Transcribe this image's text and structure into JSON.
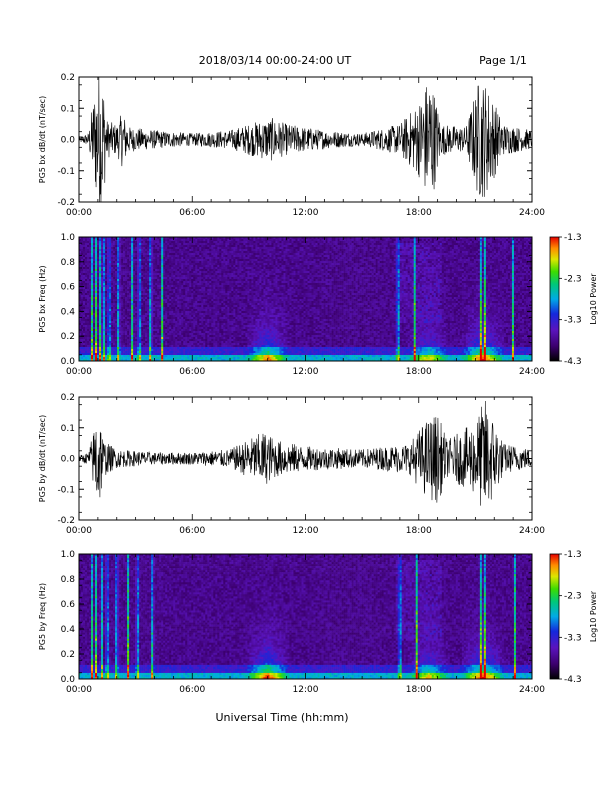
{
  "header": {
    "date_title": "2018/03/14  00:00-24:00 UT",
    "page": "Page 1/1"
  },
  "xlabel": "Universal Time (hh:mm)",
  "chart_data": [
    {
      "type": "line",
      "ylabel": "PG5 bx dB/dt (nT/sec)",
      "xlim_hours": [
        0,
        24
      ],
      "x_ticks": [
        "00:00",
        "06:00",
        "12:00",
        "18:00",
        "24:00"
      ],
      "ylim": [
        -0.2,
        0.2
      ],
      "y_ticks": [
        "0.2",
        "0.1",
        "0.0",
        "-0.1",
        "-0.2"
      ],
      "activity_envelope": [
        {
          "t": 0.0,
          "amp": 0.01
        },
        {
          "t": 0.5,
          "amp": 0.02
        },
        {
          "t": 0.8,
          "amp": 0.15
        },
        {
          "t": 1.0,
          "amp": 0.22
        },
        {
          "t": 1.2,
          "amp": 0.25
        },
        {
          "t": 1.5,
          "amp": 0.06
        },
        {
          "t": 2.0,
          "amp": 0.05
        },
        {
          "t": 2.3,
          "amp": 0.09
        },
        {
          "t": 2.7,
          "amp": 0.04
        },
        {
          "t": 4.0,
          "amp": 0.03
        },
        {
          "t": 6.0,
          "amp": 0.02
        },
        {
          "t": 8.0,
          "amp": 0.03
        },
        {
          "t": 9.5,
          "amp": 0.06
        },
        {
          "t": 10.2,
          "amp": 0.07
        },
        {
          "t": 11.0,
          "amp": 0.05
        },
        {
          "t": 13.0,
          "amp": 0.03
        },
        {
          "t": 15.0,
          "amp": 0.02
        },
        {
          "t": 17.0,
          "amp": 0.05
        },
        {
          "t": 18.0,
          "amp": 0.12
        },
        {
          "t": 18.6,
          "amp": 0.22
        },
        {
          "t": 19.2,
          "amp": 0.05
        },
        {
          "t": 20.5,
          "amp": 0.04
        },
        {
          "t": 21.2,
          "amp": 0.2
        },
        {
          "t": 21.6,
          "amp": 0.18
        },
        {
          "t": 22.5,
          "amp": 0.05
        },
        {
          "t": 24.0,
          "amp": 0.03
        }
      ]
    },
    {
      "type": "heatmap",
      "ylabel": "PG5 bx Freq (Hz)",
      "xlim_hours": [
        0,
        24
      ],
      "x_ticks": [
        "00:00",
        "06:00",
        "12:00",
        "18:00",
        "24:00"
      ],
      "ylim": [
        0.0,
        1.0
      ],
      "y_ticks": [
        "1.0",
        "0.8",
        "0.6",
        "0.4",
        "0.2",
        "0.0"
      ],
      "colorbar": {
        "label": "Log10 Power",
        "ticks": [
          "-1.3",
          "-2.3",
          "-3.3",
          "-4.3"
        ],
        "range": [
          -4.3,
          -1.3
        ]
      },
      "spikes_hours": [
        0.7,
        0.9,
        1.1,
        1.3,
        1.6,
        2.1,
        2.8,
        3.2,
        3.8,
        4.4,
        16.9,
        17.8,
        21.3,
        21.5,
        23.0
      ],
      "low_freq_activity": [
        {
          "t": 10.0,
          "level": 0.75
        },
        {
          "t": 18.5,
          "level": 0.6
        },
        {
          "t": 21.4,
          "level": 0.85
        }
      ]
    },
    {
      "type": "line",
      "ylabel": "PG5 by dB/dt (nT/sec)",
      "xlim_hours": [
        0,
        24
      ],
      "x_ticks": [
        "00:00",
        "06:00",
        "12:00",
        "18:00",
        "24:00"
      ],
      "ylim": [
        -0.2,
        0.2
      ],
      "y_ticks": [
        "0.2",
        "0.1",
        "0.0",
        "-0.1",
        "-0.2"
      ],
      "activity_envelope": [
        {
          "t": 0.0,
          "amp": 0.01
        },
        {
          "t": 0.5,
          "amp": 0.02
        },
        {
          "t": 0.8,
          "amp": 0.1
        },
        {
          "t": 1.0,
          "amp": 0.2
        },
        {
          "t": 1.3,
          "amp": 0.06
        },
        {
          "t": 2.0,
          "amp": 0.03
        },
        {
          "t": 4.0,
          "amp": 0.02
        },
        {
          "t": 6.0,
          "amp": 0.02
        },
        {
          "t": 8.0,
          "amp": 0.03
        },
        {
          "t": 9.8,
          "amp": 0.09
        },
        {
          "t": 10.5,
          "amp": 0.06
        },
        {
          "t": 12.0,
          "amp": 0.04
        },
        {
          "t": 15.0,
          "amp": 0.03
        },
        {
          "t": 17.5,
          "amp": 0.05
        },
        {
          "t": 18.3,
          "amp": 0.12
        },
        {
          "t": 19.0,
          "amp": 0.15
        },
        {
          "t": 19.5,
          "amp": 0.06
        },
        {
          "t": 21.0,
          "amp": 0.12
        },
        {
          "t": 21.5,
          "amp": 0.2
        },
        {
          "t": 22.5,
          "amp": 0.05
        },
        {
          "t": 24.0,
          "amp": 0.03
        }
      ]
    },
    {
      "type": "heatmap",
      "ylabel": "PG5 by Freq (Hz)",
      "xlim_hours": [
        0,
        24
      ],
      "x_ticks": [
        "00:00",
        "06:00",
        "12:00",
        "18:00",
        "24:00"
      ],
      "ylim": [
        0.0,
        1.0
      ],
      "y_ticks": [
        "1.0",
        "0.8",
        "0.6",
        "0.4",
        "0.2",
        "0.0"
      ],
      "colorbar": {
        "label": "Log10 Power",
        "ticks": [
          "-1.3",
          "-2.3",
          "-3.3",
          "-4.3"
        ],
        "range": [
          -4.3,
          -1.3
        ]
      },
      "spikes_hours": [
        0.7,
        0.9,
        1.2,
        1.5,
        2.0,
        2.6,
        3.1,
        3.9,
        17.0,
        17.9,
        21.3,
        21.5,
        23.1
      ],
      "low_freq_activity": [
        {
          "t": 10.0,
          "level": 0.85
        },
        {
          "t": 18.5,
          "level": 0.6
        },
        {
          "t": 21.4,
          "level": 0.85
        }
      ]
    }
  ]
}
